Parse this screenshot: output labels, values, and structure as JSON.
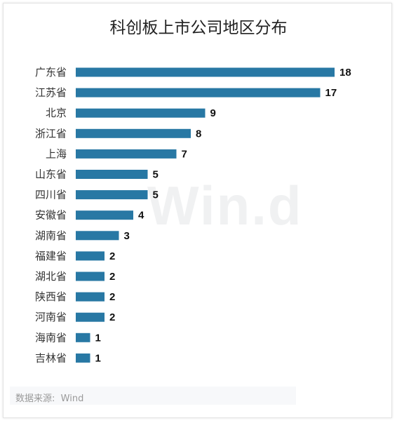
{
  "chart_data": {
    "type": "bar",
    "orientation": "horizontal",
    "title": "科创板上市公司地区分布",
    "categories": [
      "广东省",
      "江苏省",
      "北京",
      "浙江省",
      "上海",
      "山东省",
      "四川省",
      "安徽省",
      "湖南省",
      "福建省",
      "湖北省",
      "陕西省",
      "河南省",
      "海南省",
      "吉林省"
    ],
    "values": [
      18,
      17,
      9,
      8,
      7,
      5,
      5,
      4,
      3,
      2,
      2,
      2,
      2,
      1,
      1
    ],
    "bar_color": "#2878a4",
    "xlim": [
      0,
      18
    ],
    "grid": false,
    "legend": "none"
  },
  "watermark": "Win.d",
  "source": {
    "label": "数据来源:",
    "value": "Wind"
  }
}
